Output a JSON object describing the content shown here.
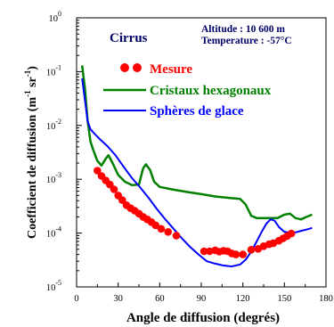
{
  "chart_data": {
    "type": "line",
    "xlabel": "Angle de diffusion  (degrés)",
    "ylabel": "Coefficient de diffusion   (m",
    "ylabel_sup": "-1",
    "ylabel_mid": " sr",
    "ylabel_sup2": "-1",
    "ylabel_end": ")",
    "xlim": [
      0,
      180
    ],
    "ylim": [
      1e-05,
      1
    ],
    "y_scale": "log",
    "x_ticks": [
      0,
      30,
      60,
      90,
      120,
      150,
      180
    ],
    "x_tick_labels": [
      "0",
      "30",
      "60",
      "90",
      "120",
      "150",
      "180"
    ],
    "y_ticks": [
      1e-05,
      0.0001,
      0.001,
      0.01,
      0.1,
      1
    ],
    "y_tick_base": [
      "10",
      "10",
      "10",
      "10",
      "10",
      "10"
    ],
    "y_tick_exp": [
      "-5",
      "-4",
      "-3",
      "-2",
      "-1",
      "0"
    ],
    "grid": false,
    "annotations": {
      "cirrus": "Cirrus",
      "altitude": "Altitude : 10 600 m",
      "temperature": "Temperature : -57°C"
    },
    "series": [
      {
        "name": "Mesure",
        "kind": "scatter",
        "color": "#ff0000",
        "points": [
          [
            15,
            0.00145
          ],
          [
            18,
            0.00115
          ],
          [
            21,
            0.00095
          ],
          [
            24,
            0.0008
          ],
          [
            27,
            0.00065
          ],
          [
            30,
            0.0005
          ],
          [
            33,
            0.00041
          ],
          [
            36,
            0.00033
          ],
          [
            39,
            0.00029
          ],
          [
            42,
            0.00026
          ],
          [
            45,
            0.00023
          ],
          [
            48,
            0.0002
          ],
          [
            51,
            0.00018
          ],
          [
            54,
            0.00016
          ],
          [
            57,
            0.00014
          ],
          [
            61,
            0.00012
          ],
          [
            66,
            0.000105
          ],
          [
            72,
            9e-05
          ],
          [
            92,
            4.6e-05
          ],
          [
            96,
            4.6e-05
          ],
          [
            100,
            4.8e-05
          ],
          [
            103,
            4.5e-05
          ],
          [
            106,
            4.7e-05
          ],
          [
            109,
            4.6e-05
          ],
          [
            112,
            4.2e-05
          ],
          [
            115,
            4e-05
          ],
          [
            120,
            4e-05
          ],
          [
            126,
            4.9e-05
          ],
          [
            131,
            5.1e-05
          ],
          [
            135,
            5.7e-05
          ],
          [
            139,
            6.2e-05
          ],
          [
            142,
            6.5e-05
          ],
          [
            146,
            7.2e-05
          ],
          [
            149,
            8e-05
          ],
          [
            152,
            8.8e-05
          ],
          [
            155,
            9.8e-05
          ]
        ]
      },
      {
        "name": "Cristaux hexagonaux",
        "kind": "line",
        "color": "#008000",
        "points": [
          [
            4,
            0.13
          ],
          [
            6,
            0.05
          ],
          [
            8,
            0.012
          ],
          [
            10,
            0.005
          ],
          [
            12,
            0.0035
          ],
          [
            15,
            0.0022
          ],
          [
            18,
            0.0018
          ],
          [
            21,
            0.0024
          ],
          [
            23,
            0.0028
          ],
          [
            26,
            0.002
          ],
          [
            30,
            0.0012
          ],
          [
            35,
            0.0009
          ],
          [
            40,
            0.00078
          ],
          [
            45,
            0.0008
          ],
          [
            48,
            0.0016
          ],
          [
            50,
            0.0019
          ],
          [
            53,
            0.0015
          ],
          [
            56,
            0.0009
          ],
          [
            60,
            0.00072
          ],
          [
            70,
            0.00064
          ],
          [
            80,
            0.00058
          ],
          [
            90,
            0.00053
          ],
          [
            100,
            0.00048
          ],
          [
            110,
            0.00045
          ],
          [
            118,
            0.00043
          ],
          [
            122,
            0.00034
          ],
          [
            126,
            0.00021
          ],
          [
            130,
            0.00019
          ],
          [
            140,
            0.00019
          ],
          [
            145,
            0.00019
          ],
          [
            150,
            0.00022
          ],
          [
            154,
            0.00023
          ],
          [
            158,
            0.00019
          ],
          [
            162,
            0.00018
          ],
          [
            166,
            0.0002
          ],
          [
            170,
            0.00022
          ]
        ]
      },
      {
        "name": "Sphères de glace",
        "kind": "line",
        "color": "#0000ff",
        "points": [
          [
            4,
            0.075
          ],
          [
            6,
            0.03
          ],
          [
            8,
            0.012
          ],
          [
            10,
            0.0085
          ],
          [
            13,
            0.007
          ],
          [
            17,
            0.0055
          ],
          [
            22,
            0.0042
          ],
          [
            28,
            0.0028
          ],
          [
            34,
            0.0017
          ],
          [
            40,
            0.00105
          ],
          [
            46,
            0.0007
          ],
          [
            52,
            0.00045
          ],
          [
            58,
            0.00028
          ],
          [
            64,
            0.00018
          ],
          [
            70,
            0.00012
          ],
          [
            76,
            8e-05
          ],
          [
            82,
            5.5e-05
          ],
          [
            88,
            4e-05
          ],
          [
            94,
            3e-05
          ],
          [
            100,
            2.7e-05
          ],
          [
            106,
            2.5e-05
          ],
          [
            112,
            2.4e-05
          ],
          [
            118,
            2.6e-05
          ],
          [
            122,
            3.2e-05
          ],
          [
            126,
            4.5e-05
          ],
          [
            130,
            7e-05
          ],
          [
            134,
            0.00011
          ],
          [
            137,
            0.00015
          ],
          [
            140,
            0.00018
          ],
          [
            143,
            0.00017
          ],
          [
            146,
            0.00013
          ],
          [
            150,
            0.000105
          ],
          [
            156,
            0.0001
          ],
          [
            162,
            0.00011
          ],
          [
            168,
            0.00012
          ],
          [
            170,
            0.000125
          ]
        ]
      }
    ]
  }
}
